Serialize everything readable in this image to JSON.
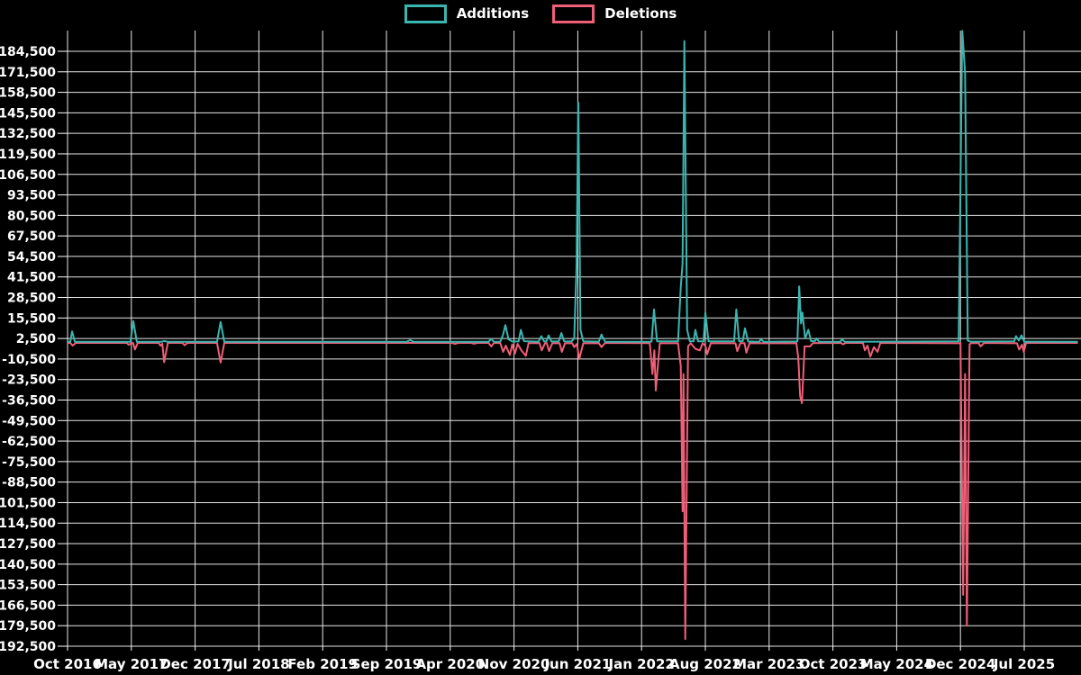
{
  "legend": [
    {
      "label": "Additions",
      "color": "#3ab6b0"
    },
    {
      "label": "Deletions",
      "color": "#f05f78"
    }
  ],
  "chart_data": {
    "type": "line",
    "title": "",
    "xlabel": "",
    "ylabel": "",
    "background_color": "#000000",
    "grid_color": "#e6e6e6",
    "text_color": "#ffffff",
    "grid": true,
    "legend_position": "top-center",
    "x_axis": {
      "tick_labels": [
        "Oct 2016",
        "May 2017",
        "Dec 2017",
        "Jul 2018",
        "Feb 2019",
        "Sep 2019",
        "Apr 2020",
        "Nov 2020",
        "Jun 2021",
        "Jan 2022",
        "Aug 2022",
        "Mar 2023",
        "Oct 2023",
        "May 2024",
        "Dec 2024",
        "Jul 2025"
      ],
      "months_between_ticks": 7,
      "x_unit": "months_since_Oct_2016"
    },
    "y_axis": {
      "min": -192500,
      "max": 197500,
      "step": 13000,
      "tick_values": [
        184500,
        171500,
        158500,
        145500,
        132500,
        119500,
        106500,
        93500,
        80500,
        67500,
        54500,
        41500,
        28500,
        15500,
        2500,
        -10500,
        -23500,
        -36500,
        -49500,
        -62500,
        -75500,
        -88500,
        -101500,
        -114500,
        -127500,
        -140500,
        -153500,
        -166500,
        -179500,
        -192500
      ],
      "tick_labels": [
        "184,500",
        "171,500",
        "158,500",
        "145,500",
        "132,500",
        "119,500",
        "106,500",
        "93,500",
        "80,500",
        "67,500",
        "54,500",
        "41,500",
        "28,500",
        "15,500",
        "2,500",
        "-10,500",
        "-23,500",
        "-36,500",
        "-49,500",
        "-62,500",
        "-75,500",
        "-88,500",
        "-101,500",
        "-114,500",
        "-127,500",
        "-140,500",
        "-153,500",
        "-166,500",
        "-179,500",
        "-192,500"
      ]
    },
    "series": [
      {
        "name": "Additions",
        "color": "#3ab6b0",
        "points": [
          [
            0,
            400
          ],
          [
            0.3,
            400
          ],
          [
            0.49,
            7000
          ],
          [
            0.8,
            400
          ],
          [
            6.9,
            400
          ],
          [
            7.22,
            13500
          ],
          [
            7.6,
            400
          ],
          [
            10.3,
            400
          ],
          [
            10.6,
            900
          ],
          [
            11,
            400
          ],
          [
            16.4,
            400
          ],
          [
            16.8,
            13000
          ],
          [
            17.2,
            400
          ],
          [
            37.2,
            400
          ],
          [
            37.6,
            1500
          ],
          [
            38,
            400
          ],
          [
            46.2,
            400
          ],
          [
            46.5,
            2200
          ],
          [
            46.8,
            400
          ],
          [
            47.5,
            500
          ],
          [
            47.8,
            5000
          ],
          [
            48.05,
            11000
          ],
          [
            48.4,
            2000
          ],
          [
            48.8,
            600
          ],
          [
            49.5,
            600
          ],
          [
            49.75,
            8000
          ],
          [
            50.1,
            800
          ],
          [
            51.7,
            500
          ],
          [
            52,
            4000
          ],
          [
            52.3,
            600
          ],
          [
            52.55,
            600
          ],
          [
            52.8,
            4500
          ],
          [
            53.1,
            600
          ],
          [
            53.9,
            600
          ],
          [
            54.2,
            6000
          ],
          [
            54.5,
            700
          ],
          [
            55.3,
            600
          ],
          [
            55.6,
            2500
          ],
          [
            55.86,
            48000
          ],
          [
            56.06,
            152000
          ],
          [
            56.3,
            8000
          ],
          [
            56.6,
            700
          ],
          [
            58.3,
            500
          ],
          [
            58.6,
            5000
          ],
          [
            59,
            400
          ],
          [
            64.1,
            500
          ],
          [
            64.36,
            21000
          ],
          [
            64.7,
            700
          ],
          [
            67,
            700
          ],
          [
            67.3,
            35000
          ],
          [
            67.5,
            50000
          ],
          [
            67.7,
            191000
          ],
          [
            68,
            8000
          ],
          [
            68.3,
            700
          ],
          [
            68.7,
            700
          ],
          [
            68.9,
            8000
          ],
          [
            69.2,
            700
          ],
          [
            69.8,
            700
          ],
          [
            70,
            19000
          ],
          [
            70.35,
            700
          ],
          [
            73.15,
            700
          ],
          [
            73.4,
            21000
          ],
          [
            73.7,
            800
          ],
          [
            74.1,
            800
          ],
          [
            74.35,
            9000
          ],
          [
            74.7,
            600
          ],
          [
            75.9,
            400
          ],
          [
            76.1,
            2000
          ],
          [
            76.4,
            400
          ],
          [
            80.1,
            600
          ],
          [
            80.3,
            35500
          ],
          [
            80.5,
            12000
          ],
          [
            80.65,
            19000
          ],
          [
            80.95,
            2500
          ],
          [
            81.3,
            8000
          ],
          [
            81.6,
            900
          ],
          [
            82,
            700
          ],
          [
            82.2,
            2500
          ],
          [
            82.5,
            400
          ],
          [
            84.8,
            400
          ],
          [
            85,
            2000
          ],
          [
            85.3,
            400
          ],
          [
            97.8,
            700
          ],
          [
            98.2,
            197500
          ],
          [
            98.5,
            171000
          ],
          [
            98.8,
            1200
          ],
          [
            99.1,
            500
          ],
          [
            103.9,
            700
          ],
          [
            104.1,
            4000
          ],
          [
            104.4,
            1200
          ],
          [
            104.7,
            4500
          ],
          [
            105,
            500
          ],
          [
            110.8,
            400
          ]
        ]
      },
      {
        "name": "Deletions",
        "color": "#f05f78",
        "points": [
          [
            0,
            -300
          ],
          [
            0.3,
            -300
          ],
          [
            0.55,
            -2000
          ],
          [
            0.9,
            -300
          ],
          [
            6.5,
            -300
          ],
          [
            6.7,
            -1500
          ],
          [
            7,
            -400
          ],
          [
            7.2,
            -400
          ],
          [
            7.4,
            -4500
          ],
          [
            7.7,
            -300
          ],
          [
            10,
            -300
          ],
          [
            10.2,
            -2000
          ],
          [
            10.4,
            -800
          ],
          [
            10.6,
            -12500
          ],
          [
            11,
            -300
          ],
          [
            12.6,
            -300
          ],
          [
            12.85,
            -1800
          ],
          [
            13.15,
            -300
          ],
          [
            16.4,
            -300
          ],
          [
            16.8,
            -12800
          ],
          [
            17.2,
            -300
          ],
          [
            42.2,
            -300
          ],
          [
            42.5,
            -900
          ],
          [
            42.9,
            -300
          ],
          [
            44.3,
            -300
          ],
          [
            44.6,
            -800
          ],
          [
            45,
            -300
          ],
          [
            46.2,
            -300
          ],
          [
            46.5,
            -2500
          ],
          [
            46.8,
            -300
          ],
          [
            47.5,
            -400
          ],
          [
            47.8,
            -6000
          ],
          [
            48.1,
            -2000
          ],
          [
            48.55,
            -8000
          ],
          [
            48.8,
            -1200
          ],
          [
            49.1,
            -7000
          ],
          [
            49.4,
            -900
          ],
          [
            49.8,
            -5000
          ],
          [
            50.3,
            -8500
          ],
          [
            50.6,
            -400
          ],
          [
            51.8,
            -400
          ],
          [
            52.05,
            -5000
          ],
          [
            52.4,
            -500
          ],
          [
            52.6,
            -500
          ],
          [
            52.85,
            -5500
          ],
          [
            53.2,
            -500
          ],
          [
            54,
            -500
          ],
          [
            54.25,
            -6000
          ],
          [
            54.6,
            -500
          ],
          [
            55.4,
            -500
          ],
          [
            55.6,
            -3000
          ],
          [
            55.9,
            -1000
          ],
          [
            56.16,
            -10500
          ],
          [
            56.6,
            -500
          ],
          [
            58.3,
            -400
          ],
          [
            58.6,
            -3000
          ],
          [
            59,
            -300
          ],
          [
            63.9,
            -400
          ],
          [
            64.2,
            -20000
          ],
          [
            64.4,
            -5000
          ],
          [
            64.56,
            -30500
          ],
          [
            65,
            -500
          ],
          [
            67,
            -500
          ],
          [
            67.3,
            -15000
          ],
          [
            67.5,
            -107000
          ],
          [
            67.6,
            -20000
          ],
          [
            67.8,
            -188000
          ],
          [
            68.1,
            -2500
          ],
          [
            68.4,
            -500
          ],
          [
            68.9,
            -4000
          ],
          [
            69.4,
            -5000
          ],
          [
            69.7,
            -500
          ],
          [
            70,
            -2000
          ],
          [
            70.2,
            -7500
          ],
          [
            70.6,
            -400
          ],
          [
            73.3,
            -500
          ],
          [
            73.5,
            -5500
          ],
          [
            73.85,
            -400
          ],
          [
            74.3,
            -400
          ],
          [
            74.5,
            -6500
          ],
          [
            74.85,
            -400
          ],
          [
            80,
            -500
          ],
          [
            80.2,
            -10000
          ],
          [
            80.4,
            -34000
          ],
          [
            80.6,
            -38500
          ],
          [
            80.9,
            -2500
          ],
          [
            81.2,
            -2500
          ],
          [
            81.5,
            -2500
          ],
          [
            81.8,
            -400
          ],
          [
            84.9,
            -300
          ],
          [
            85.1,
            -1200
          ],
          [
            85.4,
            -300
          ],
          [
            87.3,
            -300
          ],
          [
            87.5,
            -5000
          ],
          [
            87.8,
            -2000
          ],
          [
            88.1,
            -9000
          ],
          [
            88.5,
            -3000
          ],
          [
            88.9,
            -6000
          ],
          [
            89.2,
            -300
          ],
          [
            98,
            -500
          ],
          [
            98.3,
            -160000
          ],
          [
            98.5,
            -20000
          ],
          [
            98.7,
            -179500
          ],
          [
            99,
            -1200
          ],
          [
            99.2,
            -400
          ],
          [
            100,
            -400
          ],
          [
            100.2,
            -2500
          ],
          [
            100.6,
            -300
          ],
          [
            104.2,
            -500
          ],
          [
            104.45,
            -4500
          ],
          [
            104.75,
            -1500
          ],
          [
            104.95,
            -6000
          ],
          [
            105.2,
            -300
          ],
          [
            110.8,
            -300
          ]
        ]
      }
    ]
  }
}
